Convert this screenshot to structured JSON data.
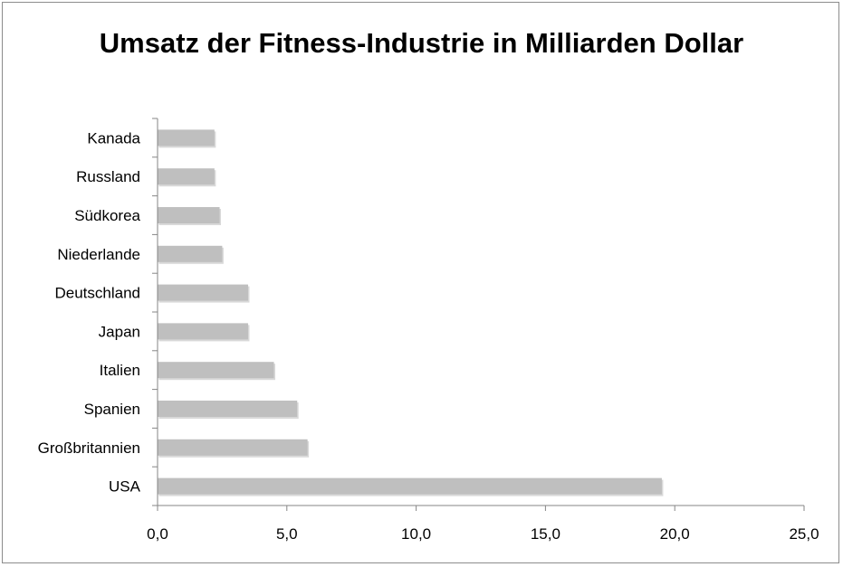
{
  "chart_data": {
    "type": "bar",
    "orientation": "horizontal",
    "title": "Umsatz der Fitness-Industrie in Milliarden Dollar",
    "xlabel": "",
    "ylabel": "",
    "categories": [
      "USA",
      "Großbritannien",
      "Spanien",
      "Italien",
      "Japan",
      "Deutschland",
      "Niederlande",
      "Südkorea",
      "Russland",
      "Kanada"
    ],
    "values": [
      19.5,
      5.8,
      5.4,
      4.5,
      3.5,
      3.5,
      2.5,
      2.4,
      2.2,
      2.2
    ],
    "xlim": [
      0,
      25
    ],
    "xticks": [
      0,
      5,
      10,
      15,
      20,
      25
    ],
    "xtick_labels": [
      "0,0",
      "5,0",
      "10,0",
      "15,0",
      "20,0",
      "25,0"
    ],
    "grid": false,
    "legend": "none",
    "bar_color": "#bfbfbf",
    "axis_color": "#868686"
  }
}
